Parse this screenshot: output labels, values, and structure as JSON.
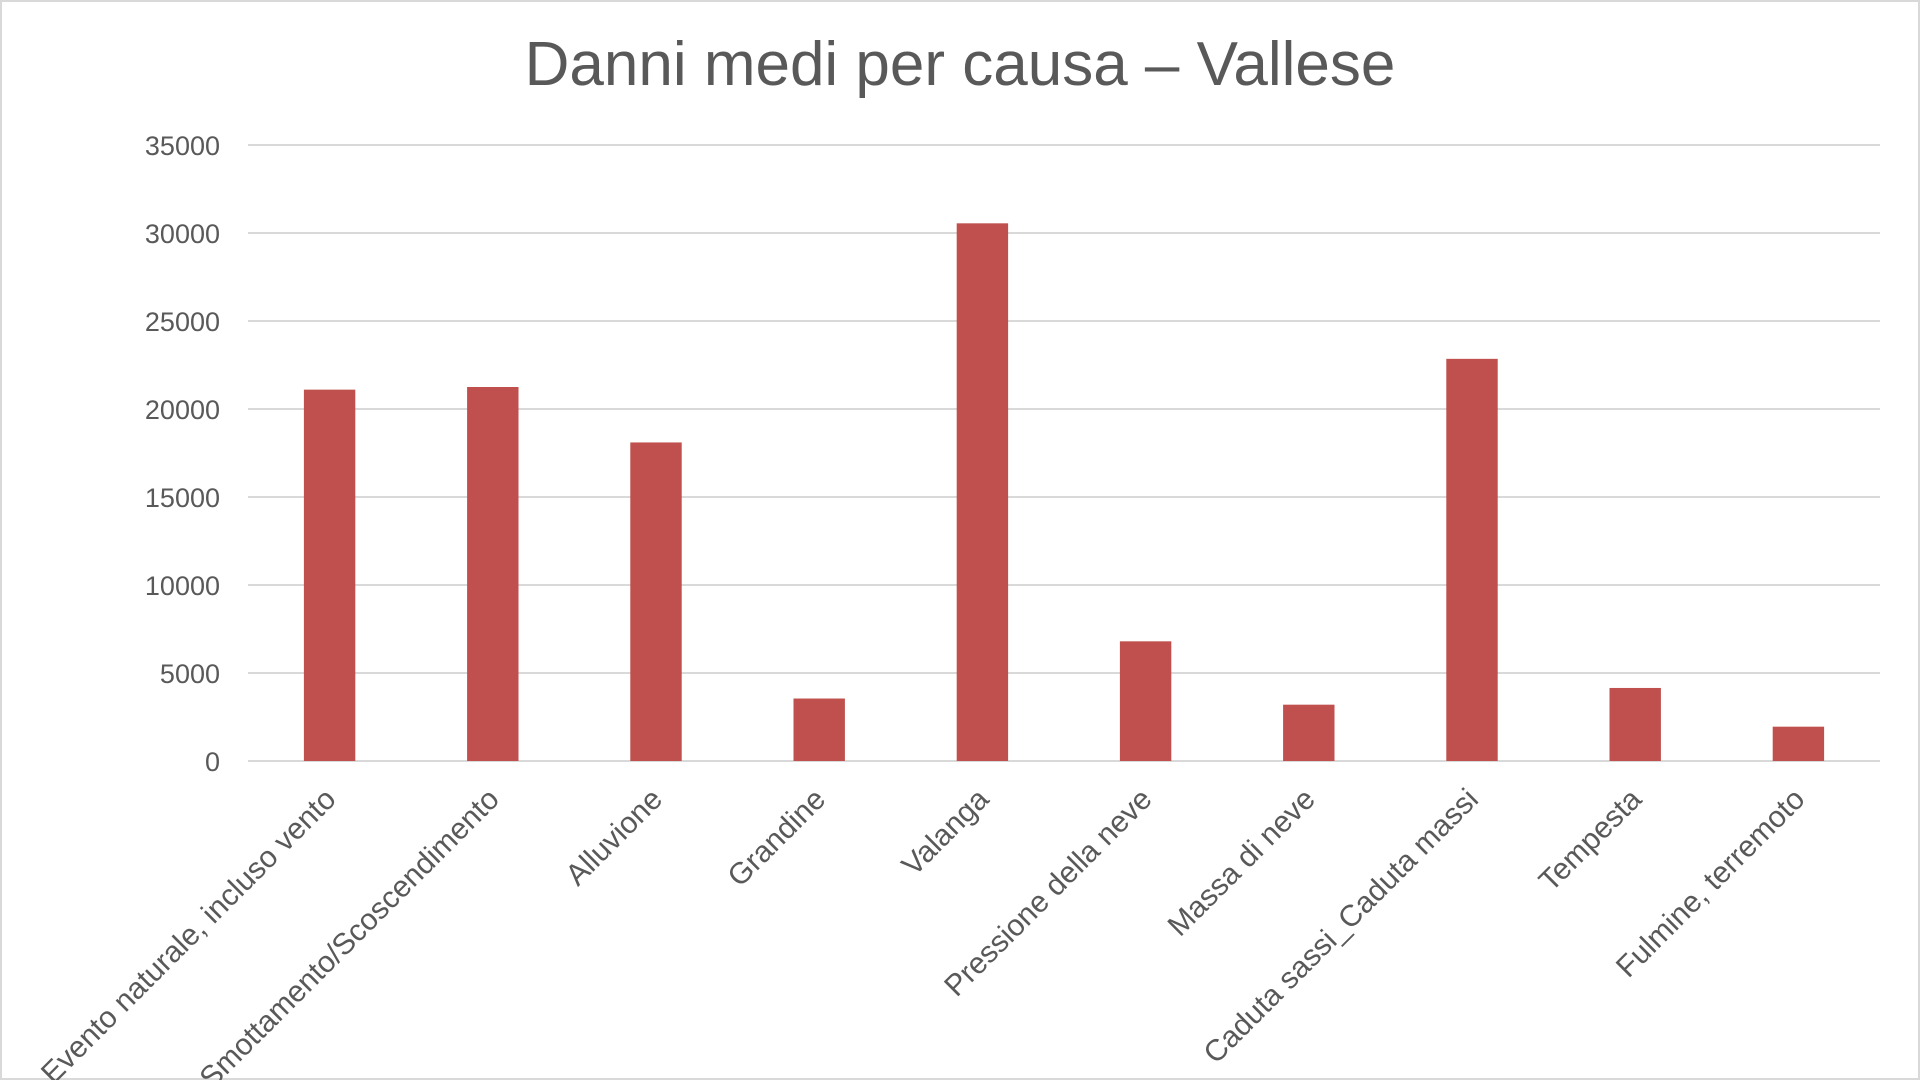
{
  "chart_data": {
    "type": "bar",
    "title": "Danni medi per causa – Vallese",
    "xlabel": "",
    "ylabel": "",
    "ylim": [
      0,
      35000
    ],
    "yticks": [
      0,
      5000,
      10000,
      15000,
      20000,
      25000,
      30000,
      35000
    ],
    "grid": true,
    "legend": "none",
    "categories": [
      "Evento naturale, incluso vento",
      "Smottamento/Scoscendimento",
      "Alluvione",
      "Grandine",
      "Valanga",
      "Pressione della neve",
      "Massa di neve",
      "Caduta sassi_Caduta massi",
      "Tempesta",
      "Fulmine, terremoto"
    ],
    "values": [
      21100,
      21250,
      18100,
      3550,
      30550,
      6800,
      3200,
      22850,
      4150,
      1950
    ],
    "bar_color": "#c0504d"
  }
}
